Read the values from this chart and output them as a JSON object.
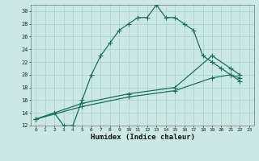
{
  "xlabel": "Humidex (Indice chaleur)",
  "background_color": "#cce8e4",
  "line_color": "#1a6e64",
  "grid_color": "#aad4ce",
  "xlim": [
    -0.5,
    23.5
  ],
  "ylim": [
    12,
    31
  ],
  "xticks": [
    0,
    1,
    2,
    3,
    4,
    5,
    6,
    7,
    8,
    9,
    10,
    11,
    12,
    13,
    14,
    15,
    16,
    17,
    18,
    19,
    20,
    21,
    22,
    23
  ],
  "yticks": [
    12,
    14,
    16,
    18,
    20,
    22,
    24,
    26,
    28,
    30
  ],
  "line1_x": [
    0,
    2,
    3,
    4,
    5,
    6,
    7,
    8,
    9,
    10,
    11,
    12,
    13,
    14,
    15,
    16,
    17,
    18,
    19,
    20,
    21,
    22
  ],
  "line1_y": [
    13,
    14,
    12,
    12,
    16,
    20,
    23,
    25,
    27,
    28,
    29,
    29,
    31,
    29,
    29,
    28,
    27,
    23,
    22,
    21,
    20,
    19.5
  ],
  "line2_x": [
    0,
    5,
    10,
    15,
    19,
    21,
    22
  ],
  "line2_y": [
    13,
    15.5,
    17,
    18,
    23,
    21,
    20
  ],
  "line3_x": [
    0,
    5,
    10,
    15,
    19,
    21,
    22
  ],
  "line3_y": [
    13,
    15,
    16.5,
    17.5,
    19.5,
    20,
    19
  ],
  "marker_size": 4,
  "linewidth": 0.9
}
